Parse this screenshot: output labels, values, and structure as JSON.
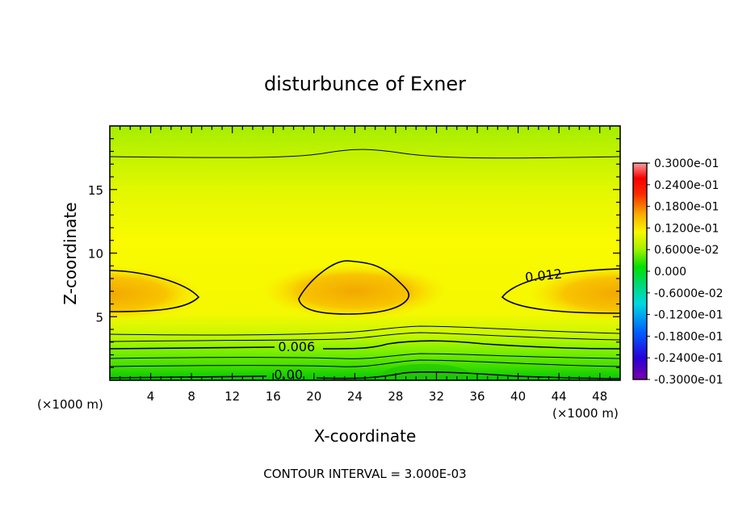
{
  "chart_data": {
    "type": "heatmap",
    "title": "disturbunce of Exner",
    "xlabel": "X-coordinate",
    "ylabel": "Z-coordinate",
    "x_unit": "(×1000 m)",
    "x_unit_right": "(×1000 m)",
    "xlim": [
      0,
      50
    ],
    "ylim": [
      0,
      20
    ],
    "x_ticks": [
      4,
      8,
      12,
      16,
      20,
      24,
      28,
      32,
      36,
      40,
      44,
      48
    ],
    "x_tick_labels": [
      "4",
      "8",
      "12",
      "16",
      "20",
      "24",
      "28",
      "32",
      "36",
      "40",
      "44",
      "48"
    ],
    "y_ticks": [
      5,
      10,
      15
    ],
    "y_tick_labels": [
      "5",
      "10",
      "15"
    ],
    "contour_interval_text": "CONTOUR INTERVAL = 3.000E-03",
    "contour_labels": [
      {
        "text": "0.012",
        "x": 42.5,
        "z": 8.2
      },
      {
        "text": "0.006",
        "x": 18.3,
        "z": 2.6
      },
      {
        "text": "0.00",
        "x": 17.5,
        "z": 0.4
      }
    ],
    "colorbar": {
      "min": -0.03,
      "max": 0.03,
      "labels": [
        "0.3000e-01",
        "0.2400e-01",
        "0.1800e-01",
        "0.1200e-01",
        "0.6000e-02",
        "0.000",
        "-0.6000e-02",
        "-0.1200e-01",
        "-0.1800e-01",
        "-0.2400e-01",
        "-0.3000e-01"
      ]
    },
    "field_description": {
      "background_value": 0.0085,
      "warm_blobs": [
        {
          "x_center": 0,
          "z_center": 6.8,
          "peak": 0.0135
        },
        {
          "x_center": 24,
          "z_center": 7.0,
          "peak": 0.0145
        },
        {
          "x_center": 50,
          "z_center": 6.8,
          "peak": 0.0135
        }
      ]
    }
  }
}
